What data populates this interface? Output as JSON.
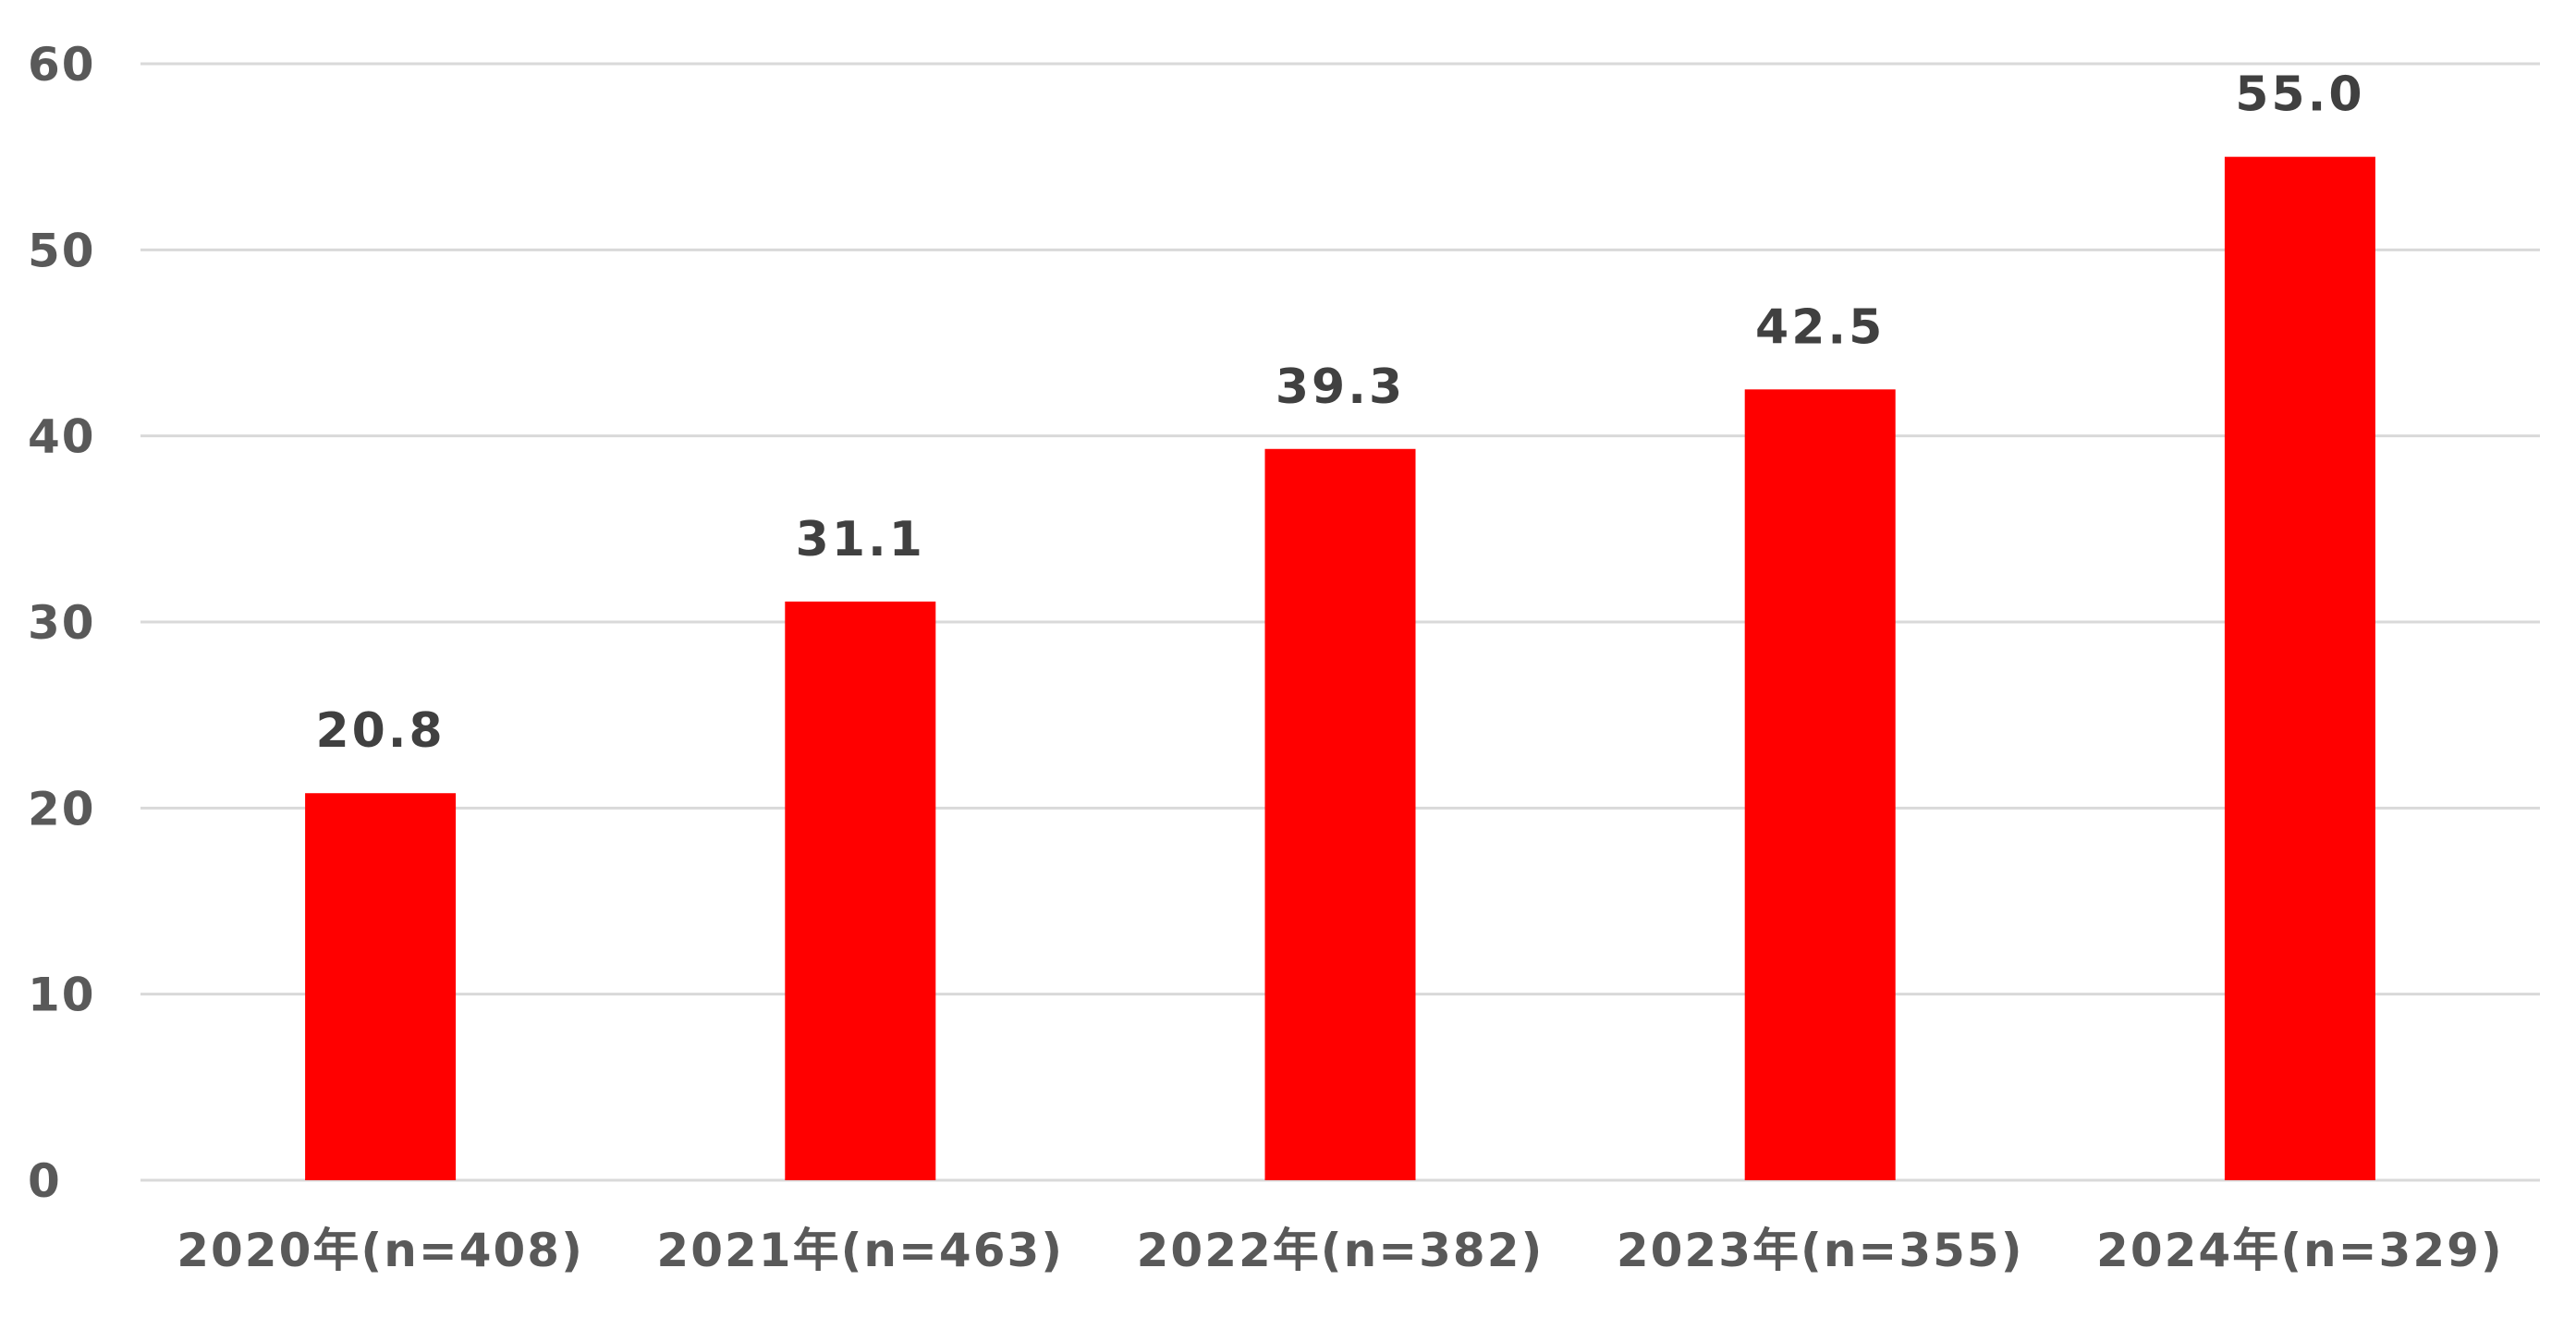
{
  "chart_data": {
    "type": "bar",
    "categories": [
      "2020年(n=408)",
      "2021年(n=463)",
      "2022年(n=382)",
      "2023年(n=355)",
      "2024年(n=329)"
    ],
    "values": [
      20.8,
      31.1,
      39.3,
      42.5,
      55.0
    ],
    "data_labels": [
      "20.8",
      "31.1",
      "39.3",
      "42.5",
      "55.0"
    ],
    "y_ticks": [
      "0",
      "10",
      "20",
      "30",
      "40",
      "50",
      "60"
    ],
    "ylim": [
      0,
      60
    ],
    "title": "",
    "xlabel": "",
    "ylabel": "",
    "grid": true,
    "legend": "none",
    "bar_color": "#ff0000",
    "grid_color": "#d9d9d9",
    "tick_label_color": "#595959",
    "data_label_color": "#404040"
  }
}
